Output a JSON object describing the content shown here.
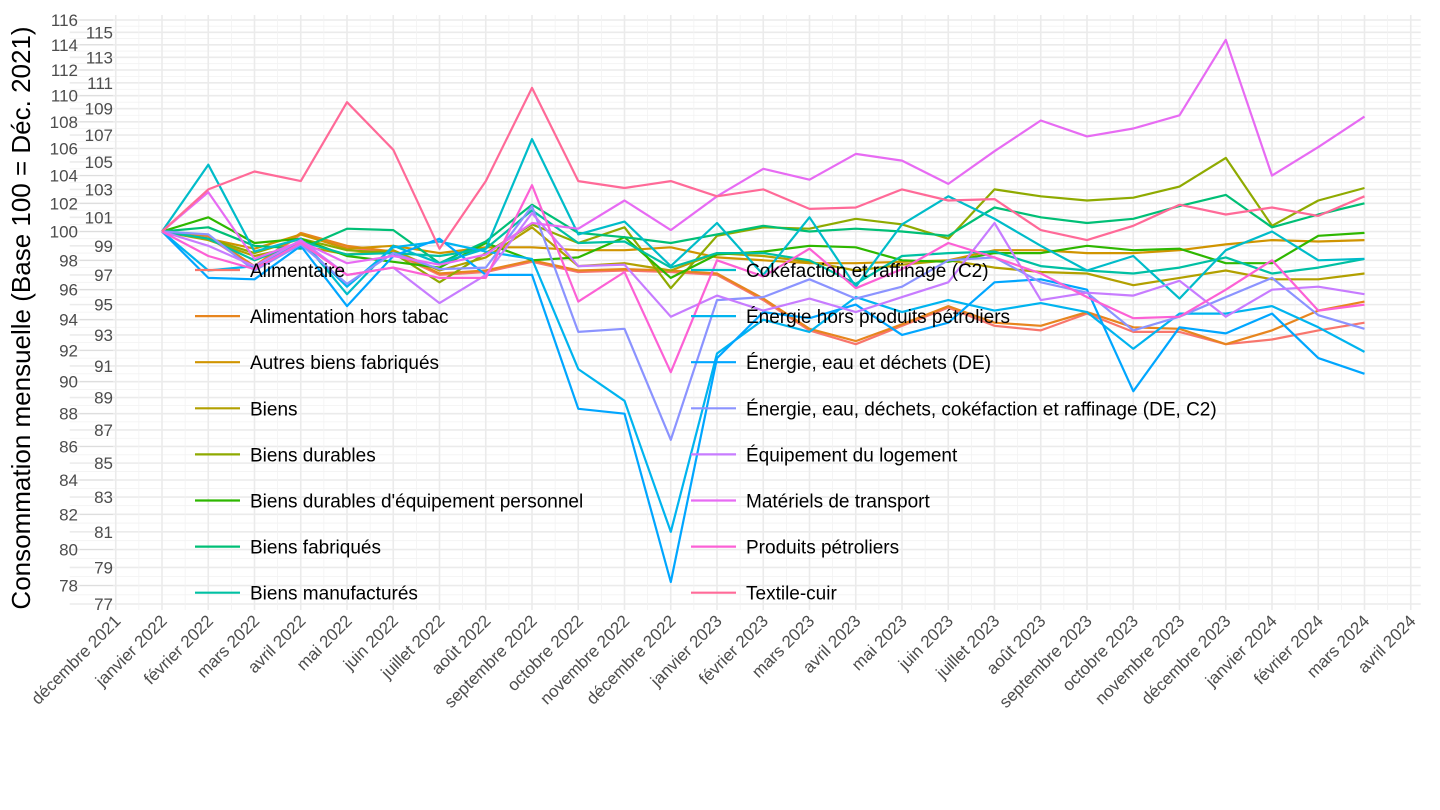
{
  "chart_data": {
    "type": "line",
    "title": "",
    "xlabel": "",
    "ylabel": "Consommation mensuelle (Base 100 = Déc. 2021)",
    "y_scale": "log",
    "ylim": [
      77,
      116
    ],
    "y_ticks": [
      77,
      78,
      79,
      80,
      81,
      82,
      83,
      84,
      85,
      86,
      87,
      88,
      89,
      90,
      91,
      92,
      93,
      94,
      95,
      96,
      97,
      98,
      99,
      100,
      101,
      102,
      103,
      104,
      105,
      106,
      107,
      108,
      109,
      110,
      111,
      112,
      113,
      114,
      115,
      116
    ],
    "x_tick_labels": [
      "décembre 2021",
      "janvier 2022",
      "février 2022",
      "mars 2022",
      "avril 2022",
      "mai 2022",
      "juin 2022",
      "juillet 2022",
      "août 2022",
      "septembre 2022",
      "octobre 2022",
      "novembre 2022",
      "décembre 2022",
      "janvier 2023",
      "février 2023",
      "mars 2023",
      "avril 2023",
      "mai 2023",
      "juin 2023",
      "juillet 2023",
      "août 2023",
      "septembre 2023",
      "octobre 2023",
      "novembre 2023",
      "décembre 2023",
      "janvier 2024",
      "février 2024",
      "mars 2024",
      "avril 2024"
    ],
    "x": [
      "janvier 2022",
      "février 2022",
      "mars 2022",
      "avril 2022",
      "mai 2022",
      "juin 2022",
      "juillet 2022",
      "août 2022",
      "septembre 2022",
      "octobre 2022",
      "novembre 2022",
      "décembre 2022",
      "janvier 2023",
      "février 2023",
      "mars 2023",
      "avril 2023",
      "mai 2023",
      "juin 2023",
      "juillet 2023",
      "août 2023",
      "septembre 2023",
      "octobre 2023",
      "novembre 2023",
      "décembre 2023",
      "janvier 2024",
      "février 2024",
      "mars 2024"
    ],
    "grid": true,
    "legend_placement": "inside-bottom-left, two columns",
    "series": [
      {
        "name": "Alimentaire",
        "color": "#F8766D",
        "values": [
          100,
          99.6,
          97.5,
          99.8,
          98.9,
          98.5,
          97.0,
          97.2,
          97.9,
          97.2,
          97.3,
          97.2,
          97.0,
          95.3,
          93.3,
          92.4,
          93.6,
          94.8,
          93.6,
          93.3,
          94.4,
          93.2,
          93.2,
          92.4,
          92.7,
          93.3,
          93.8
        ]
      },
      {
        "name": "Alimentation hors tabac",
        "color": "#E7851E",
        "values": [
          100,
          99.7,
          97.6,
          99.9,
          99.0,
          98.6,
          97.1,
          97.3,
          98.0,
          97.3,
          97.4,
          97.3,
          97.1,
          95.4,
          93.4,
          92.6,
          93.7,
          94.9,
          93.8,
          93.6,
          94.5,
          93.5,
          93.4,
          92.4,
          93.3,
          94.6,
          95.2
        ]
      },
      {
        "name": "Autres biens fabriqués",
        "color": "#D09400",
        "values": [
          100,
          99.5,
          98.8,
          99.8,
          98.8,
          99.0,
          98.5,
          98.9,
          98.9,
          98.7,
          98.7,
          98.9,
          98.2,
          98.0,
          97.8,
          97.8,
          97.9,
          98.0,
          98.7,
          98.7,
          98.5,
          98.5,
          98.7,
          99.1,
          99.4,
          99.3,
          99.4
        ]
      },
      {
        "name": "Biens",
        "color": "#B2A000",
        "values": [
          100,
          99.4,
          98.3,
          99.0,
          98.4,
          98.7,
          97.3,
          98.2,
          100.3,
          97.6,
          97.8,
          97.3,
          98.5,
          98.3,
          97.9,
          97.3,
          97.7,
          98.0,
          97.5,
          97.2,
          97.1,
          96.3,
          96.8,
          97.3,
          96.7,
          96.7,
          97.1
        ]
      },
      {
        "name": "Biens durables",
        "color": "#8FAA00",
        "values": [
          100,
          99.5,
          98.5,
          99.5,
          98.7,
          98.5,
          96.5,
          98.5,
          100.5,
          99.2,
          100.3,
          96.1,
          99.7,
          100.3,
          100.2,
          100.9,
          100.5,
          99.5,
          103.0,
          102.5,
          102.2,
          102.4,
          103.2,
          105.3,
          100.4,
          102.2,
          103.1
        ]
      },
      {
        "name": "Biens durables d'équipement personnel",
        "color": "#2EB700",
        "values": [
          100,
          101.0,
          99.2,
          99.5,
          98.3,
          97.9,
          97.5,
          99.2,
          98.0,
          98.2,
          99.6,
          96.8,
          98.4,
          98.6,
          99.0,
          98.9,
          98.0,
          97.9,
          98.5,
          98.5,
          99.0,
          98.7,
          98.8,
          97.8,
          97.8,
          99.7,
          99.9
        ]
      },
      {
        "name": "Biens fabriqués",
        "color": "#00BF76",
        "values": [
          100,
          100.3,
          99.0,
          98.8,
          100.2,
          100.1,
          97.8,
          99.3,
          101.9,
          99.9,
          99.6,
          99.2,
          99.8,
          100.4,
          100.0,
          100.2,
          100.0,
          99.7,
          101.7,
          101.0,
          100.6,
          100.9,
          101.8,
          102.6,
          100.3,
          101.2,
          102.0
        ]
      },
      {
        "name": "Biens manufacturés",
        "color": "#00C0A3",
        "values": [
          100,
          99.5,
          98.0,
          99.3,
          98.4,
          98.5,
          98.3,
          98.8,
          101.5,
          99.2,
          99.3,
          97.5,
          98.5,
          98.5,
          98.0,
          96.4,
          98.3,
          98.5,
          98.6,
          97.6,
          97.3,
          97.1,
          97.5,
          98.2,
          97.1,
          97.5,
          98.1
        ]
      },
      {
        "name": "Cokéfaction et raffinage (C2)",
        "color": "#00BCC9",
        "values": [
          100,
          104.8,
          98.6,
          99.5,
          95.7,
          99.0,
          97.8,
          98.8,
          106.7,
          99.8,
          100.7,
          97.6,
          100.6,
          97.0,
          101.0,
          96.2,
          100.5,
          102.5,
          100.9,
          99.0,
          97.3,
          98.3,
          95.4,
          98.7,
          100.0,
          98.0,
          98.1
        ]
      },
      {
        "name": "Énergie hors produits pétroliers",
        "color": "#00B4EF",
        "values": [
          100,
          97.3,
          97.6,
          99.3,
          96.2,
          98.9,
          99.3,
          98.6,
          98.1,
          90.8,
          88.8,
          81.0,
          91.8,
          94.0,
          93.2,
          95.5,
          94.5,
          95.3,
          94.6,
          95.1,
          94.5,
          92.1,
          94.4,
          94.4,
          94.9,
          93.5,
          91.9
        ]
      },
      {
        "name": "Énergie, eau et déchets (DE)",
        "color": "#00A6FF",
        "values": [
          100,
          96.8,
          96.7,
          99.0,
          94.9,
          98.3,
          99.5,
          97.0,
          97.0,
          88.3,
          88.0,
          78.2,
          91.5,
          94.5,
          94.1,
          95.0,
          93.0,
          93.8,
          96.5,
          96.7,
          96.0,
          89.4,
          93.5,
          93.1,
          94.4,
          91.5,
          90.5
        ]
      },
      {
        "name": "Énergie, eau, déchets, cokéfaction et raffinage (DE, C2)",
        "color": "#8B93FF",
        "values": [
          100,
          99.8,
          97.3,
          99.1,
          96.4,
          98.5,
          97.4,
          97.5,
          101.8,
          93.2,
          93.4,
          86.4,
          95.3,
          95.5,
          96.7,
          95.4,
          96.2,
          98.0,
          98.2,
          96.5,
          95.8,
          93.3,
          94.2,
          95.5,
          96.8,
          94.3,
          93.4
        ]
      },
      {
        "name": "Équipement du logement",
        "color": "#C77CFF",
        "values": [
          100,
          99.0,
          97.6,
          99.4,
          97.0,
          97.5,
          95.1,
          97.0,
          101.3,
          97.6,
          97.7,
          94.2,
          95.6,
          94.6,
          95.4,
          94.5,
          95.5,
          96.5,
          100.6,
          95.3,
          95.8,
          95.6,
          96.6,
          94.2,
          96.0,
          96.2,
          95.7
        ]
      },
      {
        "name": "Matériels de transport",
        "color": "#E76BF3",
        "values": [
          100,
          102.8,
          98.1,
          99.3,
          97.8,
          98.3,
          97.7,
          98.4,
          100.6,
          100.2,
          102.2,
          100.1,
          102.5,
          104.5,
          103.7,
          105.6,
          105.1,
          103.4,
          105.8,
          108.1,
          106.9,
          107.5,
          108.5,
          114.4,
          104.0,
          106.1,
          108.4
        ]
      },
      {
        "name": "Produits pétroliers",
        "color": "#FC61D5",
        "values": [
          100,
          98.3,
          97.4,
          99.2,
          97.0,
          97.5,
          96.8,
          96.8,
          103.3,
          95.2,
          97.2,
          90.6,
          98.0,
          96.9,
          98.8,
          96.1,
          97.4,
          99.2,
          98.2,
          97.1,
          95.5,
          94.1,
          94.2,
          96.0,
          98.0,
          94.6,
          95.0
        ]
      },
      {
        "name": "Textile-cuir",
        "color": "#FF6A98",
        "values": [
          100,
          103.0,
          104.3,
          103.6,
          109.5,
          105.9,
          98.8,
          103.6,
          110.6,
          103.6,
          103.1,
          103.6,
          102.5,
          103.0,
          101.6,
          101.7,
          103.0,
          102.2,
          102.3,
          100.1,
          99.4,
          100.4,
          101.9,
          101.2,
          101.7,
          101.1,
          102.5
        ]
      }
    ]
  }
}
